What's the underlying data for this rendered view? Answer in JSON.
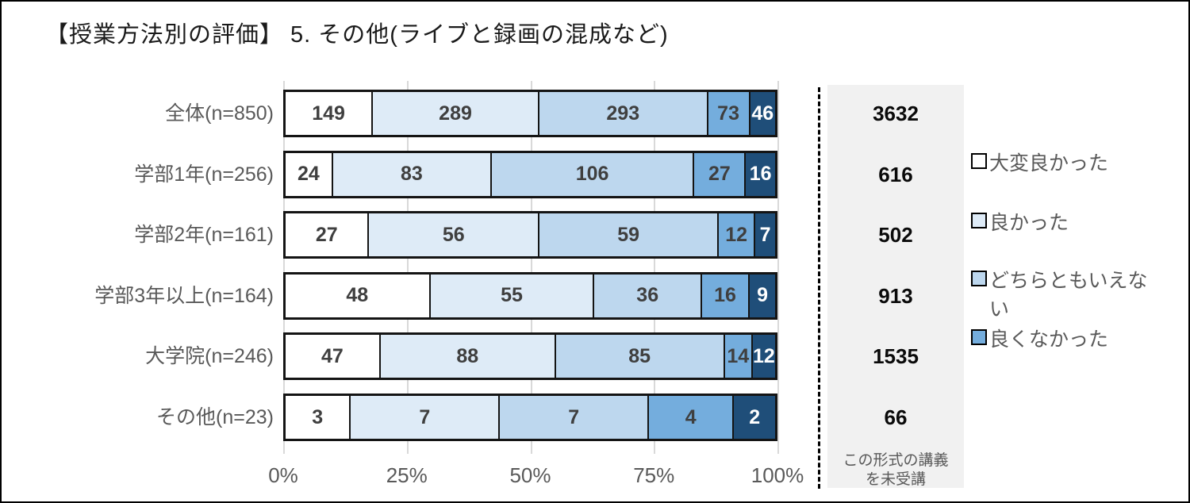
{
  "title": "【授業方法別の評価】 5. その他(ライブと録画の混成など)",
  "chart_data": {
    "type": "bar",
    "orientation": "horizontal",
    "stacked": true,
    "title": "【授業方法別の評価】 5. その他(ライブと録画の混成など)",
    "categories": [
      "全体(n=850)",
      "学部1年(n=256)",
      "学部2年(n=161)",
      "学部3年以上(n=164)",
      "大学院(n=246)",
      "その他(n=23)"
    ],
    "series": [
      {
        "name": "大変良かった",
        "color": "#FFFFFF",
        "text_color": "#3f3f3f",
        "values": [
          149,
          24,
          27,
          48,
          47,
          3
        ]
      },
      {
        "name": "良かった",
        "color": "#DEEBF7",
        "text_color": "#3f3f3f",
        "values": [
          289,
          83,
          56,
          55,
          88,
          7
        ]
      },
      {
        "name": "どちらともいえない",
        "color": "#BDD7EE",
        "text_color": "#3f3f3f",
        "values": [
          293,
          106,
          59,
          36,
          85,
          7
        ]
      },
      {
        "name": "良くなかった",
        "color": "#74ADDD",
        "text_color": "#3f3f3f",
        "values": [
          73,
          27,
          12,
          16,
          14,
          4
        ]
      },
      {
        "name": "",
        "color": "#1F4E79",
        "text_color": "#FFFFFF",
        "values": [
          46,
          16,
          7,
          9,
          12,
          2
        ]
      }
    ],
    "x_ticks": [
      "0%",
      "25%",
      "50%",
      "75%",
      "100%"
    ],
    "xlim": [
      0,
      100
    ],
    "grid": true,
    "legend": {
      "position": "right",
      "items": [
        {
          "label": "大変良かった",
          "color": "#FFFFFF"
        },
        {
          "label": "良かった",
          "color": "#DEEBF7"
        },
        {
          "label": "どちらともいえな\nい",
          "color": "#BDD7EE"
        },
        {
          "label": "良くなかった",
          "color": "#74ADDD"
        }
      ]
    },
    "not_attended": {
      "values": [
        3632,
        616,
        502,
        913,
        1535,
        66
      ],
      "caption": "この形式の講義\nを未受講"
    }
  },
  "colors": {
    "grid": "#D9D9D9",
    "bar_border": "#141414",
    "category_label": "#595959",
    "axis_label": "#595959",
    "panel_bg": "#F1F1F1",
    "panel_value": "#0A0A0A",
    "legend_label": "#595959"
  }
}
